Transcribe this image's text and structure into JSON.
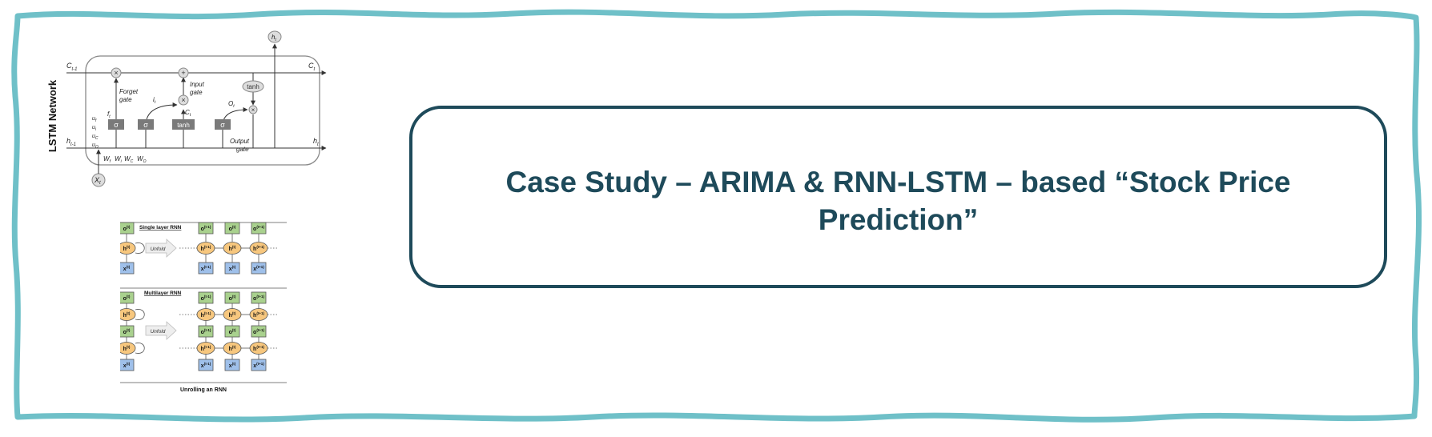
{
  "slide": {
    "title": "Case Study – ARIMA & RNN-LSTM – based “Stock Price Prediction”",
    "frame_color": "#6fc0c8",
    "title_color": "#1e4a5a"
  },
  "lstm": {
    "side_title": "LSTM Network",
    "c_prev": "C",
    "c_prev_sub": "t-1",
    "c_next": "C",
    "c_next_sub": "t",
    "h_prev": "h",
    "h_prev_sub": "t-1",
    "h_next": "h",
    "h_next_sub": "t",
    "h_top": "h",
    "h_top_sub": "t",
    "x_in": "X",
    "x_in_sub": "t",
    "forget_gate": [
      "Forget",
      "gate"
    ],
    "input_gate": [
      "Input",
      "gate"
    ],
    "output_gate": [
      "Output",
      "gate"
    ],
    "f_label": "f",
    "f_sub": "t",
    "i_label": "i",
    "i_sub": "t",
    "c_tilde": "C",
    "c_tilde_sub": "t",
    "o_label": "O",
    "o_sub": "t",
    "sigma": "σ",
    "tanh": "tanh",
    "times": "×",
    "plus": "+",
    "u_labels": [
      "u",
      "u",
      "u",
      "u"
    ],
    "u_subs": [
      "f",
      "i",
      "C",
      "O"
    ],
    "w_label": "W",
    "w_subs": [
      "f",
      "i",
      "C",
      "O"
    ]
  },
  "rnn": {
    "single_title": "Single layer RNN",
    "multi_title": "Multilayer RNN",
    "unfold": "Unfold",
    "caption": "Unrolling an RNN",
    "o": "o",
    "h": "h",
    "x": "x",
    "t": "(t)",
    "tm1": "(t-1)",
    "tp1": "(t+1)",
    "green": "#a9d18e",
    "orange": "#f7c77e",
    "blue": "#9fc0ea"
  }
}
